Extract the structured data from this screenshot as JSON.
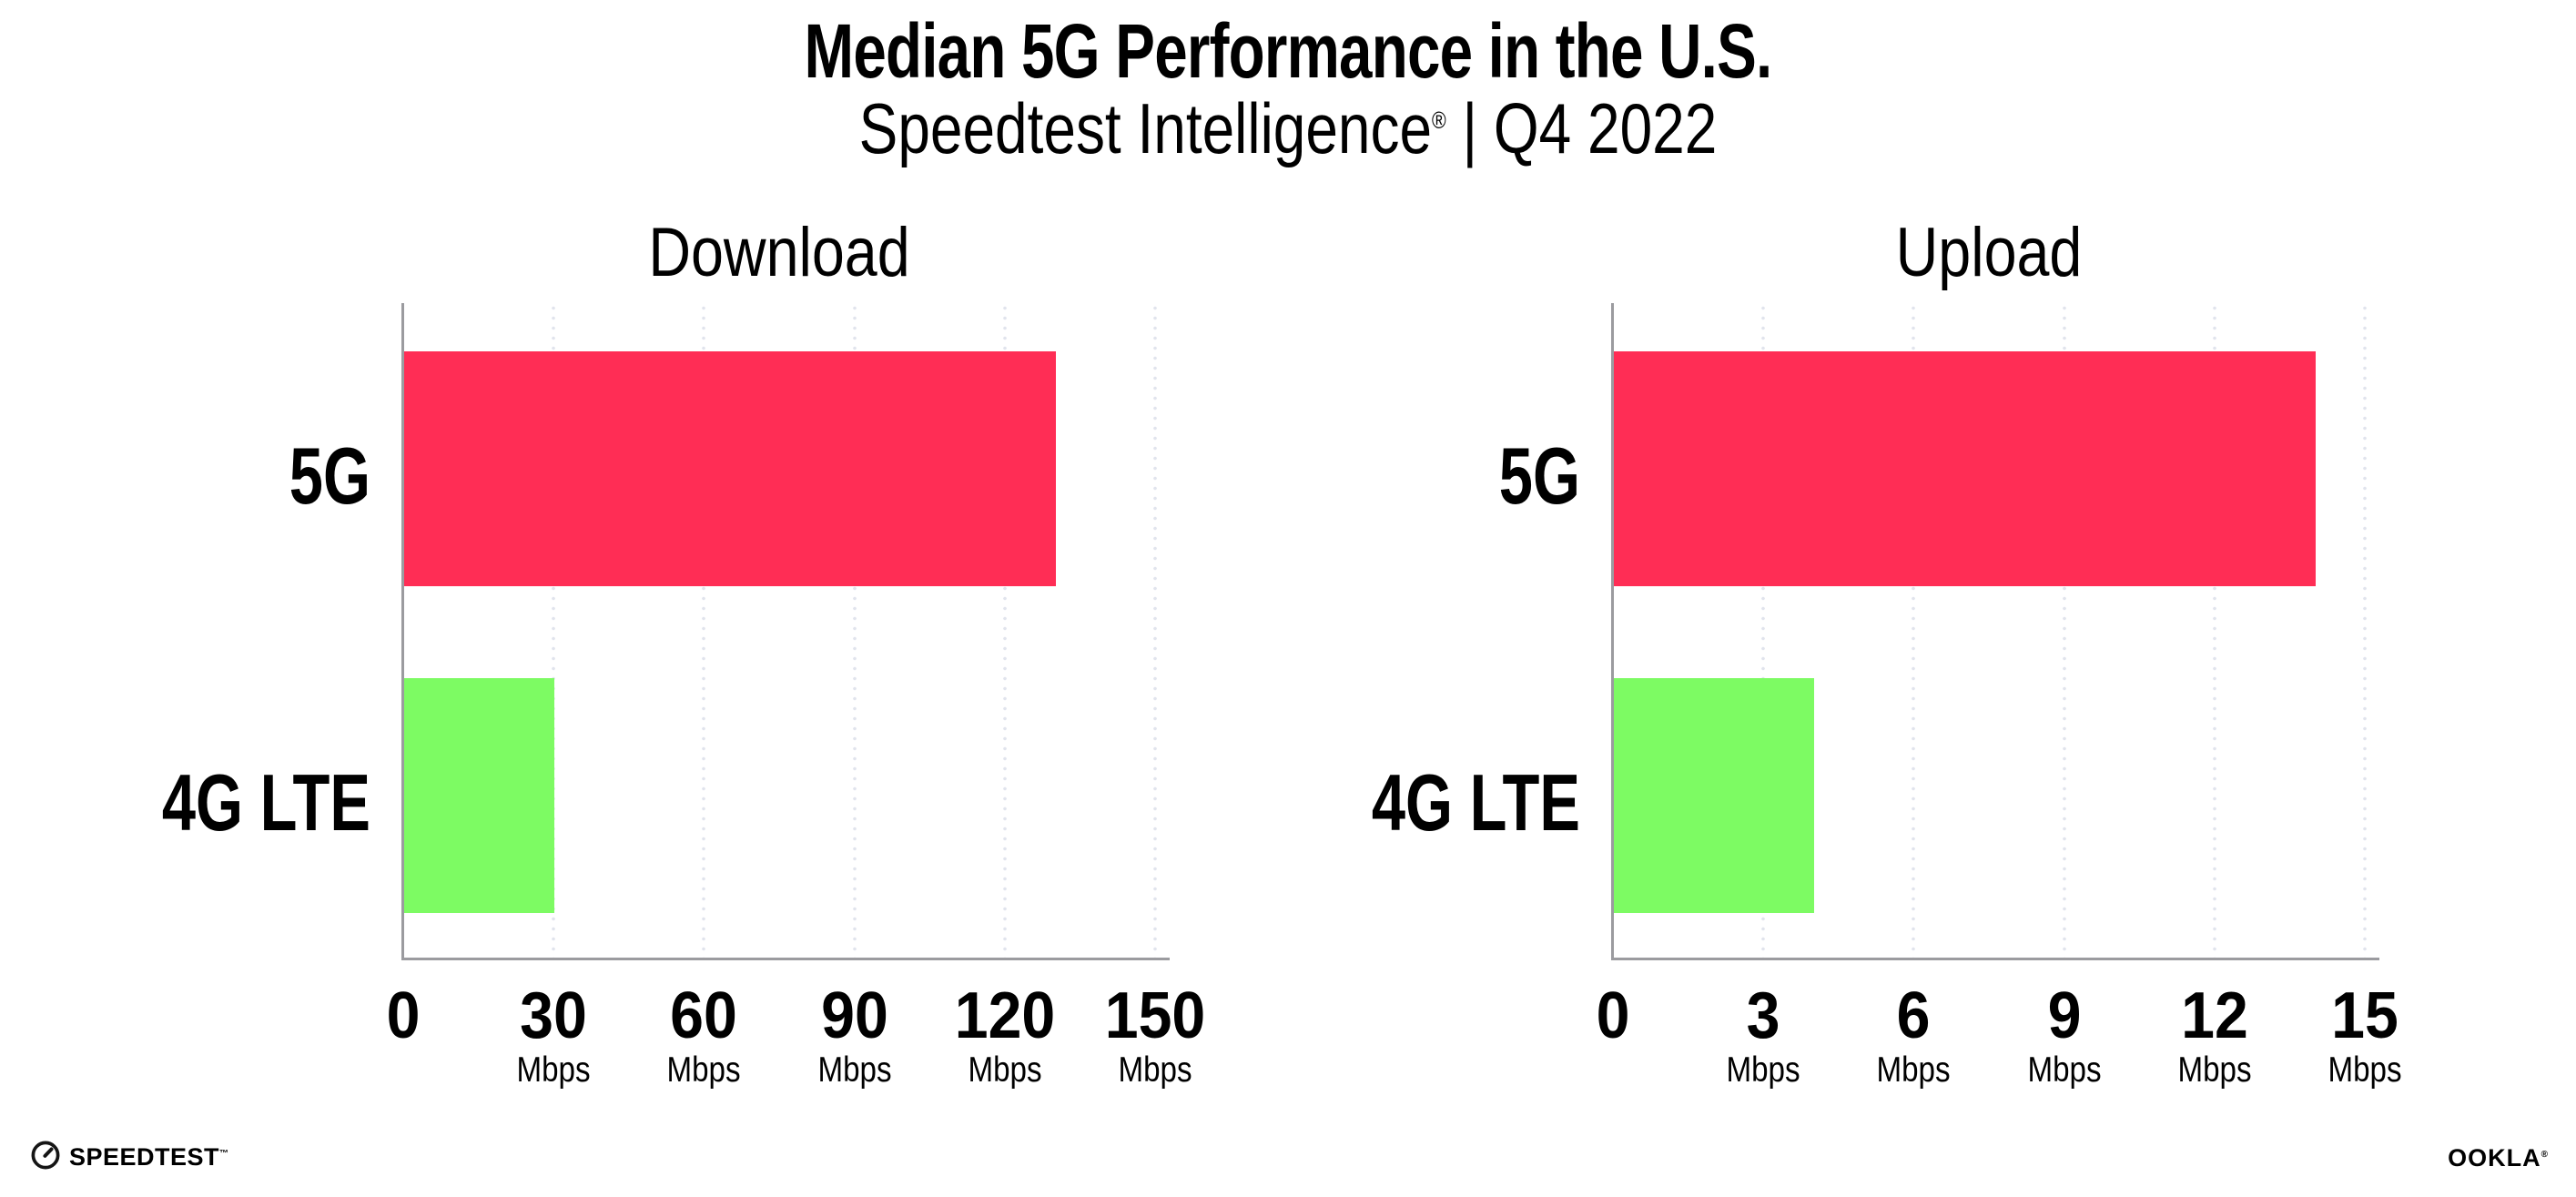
{
  "header": {
    "title": "Median 5G Performance in the U.S.",
    "subtitle_brand": "Speedtest Intelligence",
    "subtitle_registered": "®",
    "subtitle_separator": "|",
    "subtitle_period": "Q4 2022"
  },
  "chart_data": [
    {
      "type": "bar",
      "orientation": "horizontal",
      "title": "Download",
      "categories": [
        "5G",
        "4G LTE"
      ],
      "values": [
        130,
        30
      ],
      "value_unit": "Mbps",
      "xlim": [
        0,
        150
      ],
      "xticks": [
        {
          "value": 0,
          "label": "0",
          "unit": ""
        },
        {
          "value": 30,
          "label": "30",
          "unit": "Mbps"
        },
        {
          "value": 60,
          "label": "60",
          "unit": "Mbps"
        },
        {
          "value": 90,
          "label": "90",
          "unit": "Mbps"
        },
        {
          "value": 120,
          "label": "120",
          "unit": "Mbps"
        },
        {
          "value": 150,
          "label": "150",
          "unit": "Mbps"
        }
      ],
      "grid": "dotted-vertical",
      "legend": "none"
    },
    {
      "type": "bar",
      "orientation": "horizontal",
      "title": "Upload",
      "categories": [
        "5G",
        "4G LTE"
      ],
      "values": [
        14,
        4
      ],
      "value_unit": "Mbps",
      "xlim": [
        0,
        15
      ],
      "xticks": [
        {
          "value": 0,
          "label": "0",
          "unit": ""
        },
        {
          "value": 3,
          "label": "3",
          "unit": "Mbps"
        },
        {
          "value": 6,
          "label": "6",
          "unit": "Mbps"
        },
        {
          "value": 9,
          "label": "9",
          "unit": "Mbps"
        },
        {
          "value": 12,
          "label": "12",
          "unit": "Mbps"
        },
        {
          "value": 15,
          "label": "15",
          "unit": "Mbps"
        }
      ],
      "grid": "dotted-vertical",
      "legend": "none"
    }
  ],
  "footer": {
    "speedtest_logo_text": "SPEEDTEST",
    "speedtest_trademark": "™",
    "ookla_logo_text": "OOKLA",
    "ookla_registered": "®"
  },
  "colors": {
    "bar_5g": "#FF2D55",
    "bar_4g_lte": "#7DFB63",
    "axis": "#9B9B9F",
    "gridline": "#E1E4ED",
    "text": "#000000"
  }
}
